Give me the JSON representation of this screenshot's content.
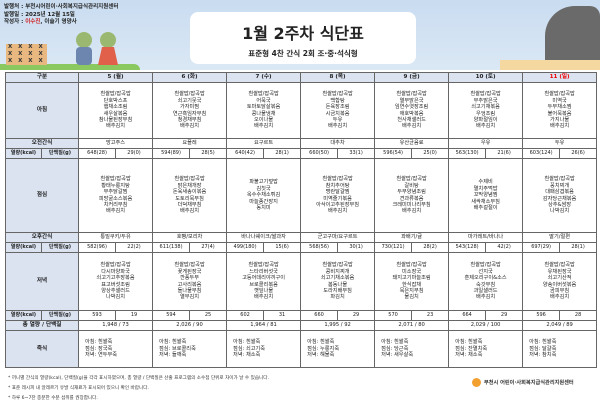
{
  "header": {
    "publisher": "발행처 : 부천시어린이·사회복지급식관리지원센터",
    "date_label": "발행일 : ",
    "date": "2025년 12월 15일",
    "author_label": "작성자 : ",
    "author_hl": "이수진",
    "author_rest": ", 이슬기 영양사",
    "title": "1월 2주차 식단표",
    "subtitle": "표준형 4찬 간식 2회 조·중·석식형",
    "marks": "X X X X\nX X X X\nX X X X"
  },
  "table": {
    "corner": "구분",
    "days": [
      "5 (월)",
      "6 (화)",
      "7 (수)",
      "8 (목)",
      "9 (금)",
      "10 (토)",
      "11 (일)"
    ],
    "labels": {
      "breakfast": "아침",
      "am_snack": "오전간식",
      "nut": "열량(kcal)",
      "prot": "단백질(g)",
      "lunch": "점심",
      "pm_snack": "오후간식",
      "dinner": "저녁",
      "total": "총 열량 / 단백질",
      "porridge": "죽식"
    },
    "breakfast": [
      [
        "흰쌀밥/잡곡밥",
        "단호박스프",
        "햄채소조림",
        "새우살볶음",
        "참나물된장무침",
        "배추김치"
      ],
      [
        "흰쌀밥/잡곡밥",
        "쇠고기뭇국",
        "가자미찜",
        "연근흑임자무침",
        "청경채무침",
        "배추김치"
      ],
      [
        "흰쌀밥/잡곡밥",
        "어묵국",
        "토마토닭살볶음",
        "콩나물냉채",
        "오이나물",
        "배추김치"
      ],
      [
        "흰쌀밥/잡곡밥",
        "백합탕",
        "돈육장조림",
        "시금치볶음",
        "두유",
        "배추김치"
      ],
      [
        "흰쌀밥/잡곡밥",
        "열무맑은국",
        "임연수엿장조림",
        "애호박볶음",
        "천사채샐러드",
        "배추김치"
      ],
      [
        "흰쌀밥/잡곡밥",
        "부추맑은국",
        "쇠고기채볶음",
        "우엉조림",
        "양파절임이",
        "배추김치"
      ],
      [
        "흰쌀밥/잡곡밥",
        "미역국",
        "두부채소찜",
        "불어묵볶음",
        "가지나물",
        "배추김치"
      ]
    ],
    "am_snack": [
      "망고주스",
      "요플레",
      "요구르트",
      "대추차",
      "유산균음료",
      "우유",
      "두유"
    ],
    "am_nut": [
      [
        "648(28)",
        "29(0)"
      ],
      [
        "594(89)",
        "28(5)"
      ],
      [
        "640(42)",
        "28(1)"
      ],
      [
        "660(50)",
        "33(1)"
      ],
      [
        "596(54)",
        "25(0)"
      ],
      [
        "563(130)",
        "21(6)"
      ],
      [
        "603(124)",
        "26(6)"
      ]
    ],
    "lunch": [
      [
        "흰쌀밥/잡곡밥",
        "황태누룽지탕",
        "부추닭갈찜",
        "피망굴소스볶음",
        "치커리무침",
        "배추김치"
      ],
      [
        "흰쌀밥/잡곡밥",
        "맑은채개장",
        "돈육새송이볶음",
        "도토리묵무침",
        "더덕채무침",
        "배추김치"
      ],
      [
        "파불고기덮밥",
        "김칫국",
        "옥수수채소튀김",
        "마늘종간장지",
        "동치미"
      ],
      [
        "흰쌀밥/잡곡밥",
        "참치추어탕",
        "명란달걀찜",
        "미역줄기볶음",
        "아삭이고추된장무침",
        "배추김치"
      ],
      [
        "흰쌀밥/잡곡밥",
        "갈비탕",
        "두부양념조림",
        "견과류볶음",
        "크레미미나리무침",
        "배추김치"
      ],
      [
        "수제비",
        "멸치주먹밥",
        "꼬막양념찜",
        "새싹채소무침",
        "배추겉절이"
      ],
      [
        "흰쌀밥/잡곡밥",
        "꽁치찌개",
        "대패삼겹볶음",
        "감자당근채볶음",
        "상추&쌈장",
        "나박김치"
      ]
    ],
    "pm_snack": [
      "통밀쿠키/두유",
      "호빵/보리차",
      "바나나쉐이크/쌀과자",
      "군고구마/요구르트",
      "꽈배기/귤",
      "마가레트/바나나",
      "딸기/절편"
    ],
    "pm_nut": [
      [
        "582(96)",
        "22(2)"
      ],
      [
        "611(138)",
        "27(4)"
      ],
      [
        "499(180)",
        "15(6)"
      ],
      [
        "568(56)",
        "30(1)"
      ],
      [
        "730(121)",
        "28(2)"
      ],
      [
        "543(128)",
        "42(2)"
      ],
      [
        "697(29)",
        "28(1)"
      ]
    ],
    "dinner": [
      [
        "흰쌀밥/잡곡밥",
        "다시마양파국",
        "쇠고기고추장볶음",
        "표고버섯조림",
        "양상추샐러드",
        "나박김치"
      ],
      [
        "흰쌀밥/잡곡밥",
        "꽃게된장국",
        "깐풍두부",
        "고사리볶음",
        "돌나물무침",
        "열무김치"
      ],
      [
        "흰쌀밥/잡곡밥",
        "느타리버섯국",
        "고등어데리야끼구이",
        "브로콜리볶음",
        "깻잎나물",
        "배추김치"
      ],
      [
        "흰쌀밥/잡곡밥",
        "콩비지찌개",
        "쇠고기채소볶음",
        "봄동나물",
        "도라지배무침",
        "파김치"
      ],
      [
        "흰쌀밥/잡곡밥",
        "미소장국",
        "돼지고기마늘조림",
        "한식잡채",
        "묵은지무침",
        "물김치"
      ],
      [
        "흰쌀밥/잡곡밥",
        "선지국",
        "훈제오리구이&소스",
        "숙갓무침",
        "과일샐러드",
        "배추김치"
      ],
      [
        "흰쌀밥/잡곡밥",
        "유채된장국",
        "쇠고기산적",
        "양송이버섯볶음",
        "곰피무침",
        "배추김치"
      ]
    ],
    "dinner_nut": [
      [
        "593",
        "19"
      ],
      [
        "594",
        "25"
      ],
      [
        "602",
        "31"
      ],
      [
        "660",
        "29"
      ],
      [
        "570",
        "23"
      ],
      [
        "664",
        "29"
      ],
      [
        "596",
        "28"
      ]
    ],
    "total": [
      "1,948  /  73",
      "2,026  /  90",
      "1,964  /  81",
      "1,995  /  92",
      "2,071  /  80",
      "2,029  /  100",
      "2,049  /  89"
    ],
    "porridge": [
      [
        "아침: 흰쌀죽",
        "점심: 장국죽",
        "저녁: 연두부죽"
      ],
      [
        "아침: 흰쌀죽",
        "점심: 브로콜리죽",
        "저녁: 들깨죽"
      ],
      [
        "아침: 흰쌀죽",
        "점심: 쇠고기죽",
        "저녁: 채소죽"
      ],
      [
        "아침: 흰쌀죽",
        "점심: 누룽지죽",
        "저녁: 해물죽"
      ],
      [
        "아침: 흰쌀죽",
        "점심: 당근죽",
        "저녁: 새우살죽"
      ],
      [
        "아침: 흰쌀죽",
        "점심: 잔멸치죽",
        "저녁: 채소죽"
      ],
      [
        "아침: 흰쌀죽",
        "점심: 달걀죽",
        "저녁: 참치죽"
      ]
    ]
  },
  "notes": [
    "* 끼니별 간식의 열량(kcal), 단백질(g)을 각각 표시하였으며, 총 열량 / 단백질은 산출 프로그램의 소수점 단위로 차이가 날 수 있습니다.",
    "* 표준 레시피 내 알레르기 유발 식재료가 표시되어 있으니 확인 바랍니다.",
    "* 하루 6~7잔 충분한 수분 섭취를 권장합니다."
  ],
  "logo": "부천시 어린이·사회복지급식관리지원센터",
  "colors": {
    "header_bg": "#dbe3f1",
    "sunday": "#e00000"
  }
}
